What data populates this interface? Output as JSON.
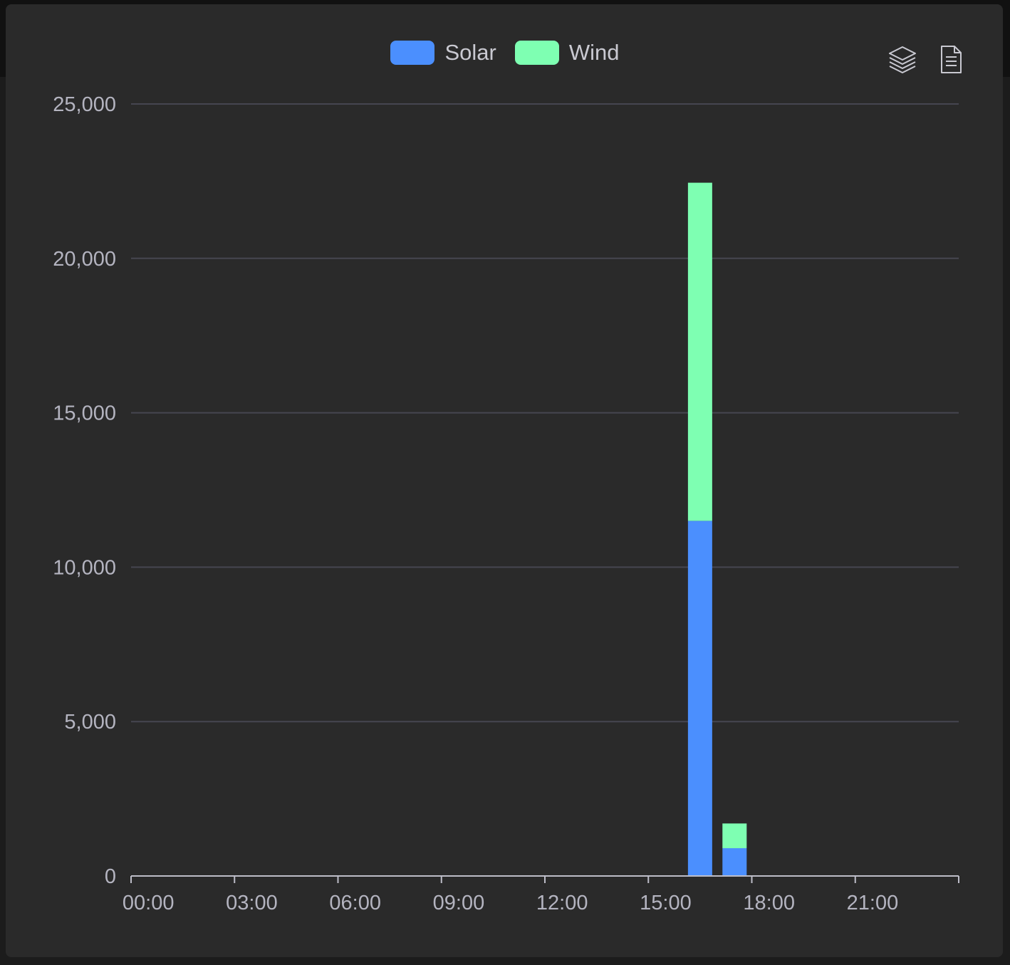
{
  "legend": {
    "items": [
      {
        "label": "Solar",
        "color": "#4b8ffe"
      },
      {
        "label": "Wind",
        "color": "#7effb2"
      }
    ]
  },
  "toolbox": {
    "icons": [
      "stack-icon",
      "data-view-icon"
    ]
  },
  "colors": {
    "background": "#2a2a2a",
    "grid": "#464650",
    "axis": "#bdbdc8",
    "text": "#b4b4c0"
  },
  "chart_data": {
    "type": "bar",
    "stacked": true,
    "x": [
      "00:00",
      "01:00",
      "02:00",
      "03:00",
      "04:00",
      "05:00",
      "06:00",
      "07:00",
      "08:00",
      "09:00",
      "10:00",
      "11:00",
      "12:00",
      "13:00",
      "14:00",
      "15:00",
      "16:00",
      "17:00",
      "18:00",
      "19:00",
      "20:00",
      "21:00",
      "22:00",
      "23:00"
    ],
    "x_tick_labels": [
      "00:00",
      "03:00",
      "06:00",
      "09:00",
      "12:00",
      "15:00",
      "18:00",
      "21:00"
    ],
    "series": [
      {
        "name": "Solar",
        "color": "#4b8ffe",
        "values": [
          0,
          0,
          0,
          0,
          0,
          0,
          0,
          0,
          0,
          0,
          0,
          0,
          0,
          0,
          0,
          0,
          11500,
          900,
          0,
          0,
          0,
          0,
          0,
          0
        ]
      },
      {
        "name": "Wind",
        "color": "#7effb2",
        "values": [
          0,
          0,
          0,
          0,
          0,
          0,
          0,
          0,
          0,
          0,
          0,
          0,
          0,
          0,
          0,
          0,
          10950,
          800,
          0,
          0,
          0,
          0,
          0,
          0
        ]
      }
    ],
    "y_ticks": [
      0,
      5000,
      10000,
      15000,
      20000,
      25000
    ],
    "y_tick_labels": [
      "0",
      "5,000",
      "10,000",
      "15,000",
      "20,000",
      "25,000"
    ],
    "ylim": [
      0,
      25000
    ],
    "grid": true,
    "legend_position": "top-center"
  }
}
